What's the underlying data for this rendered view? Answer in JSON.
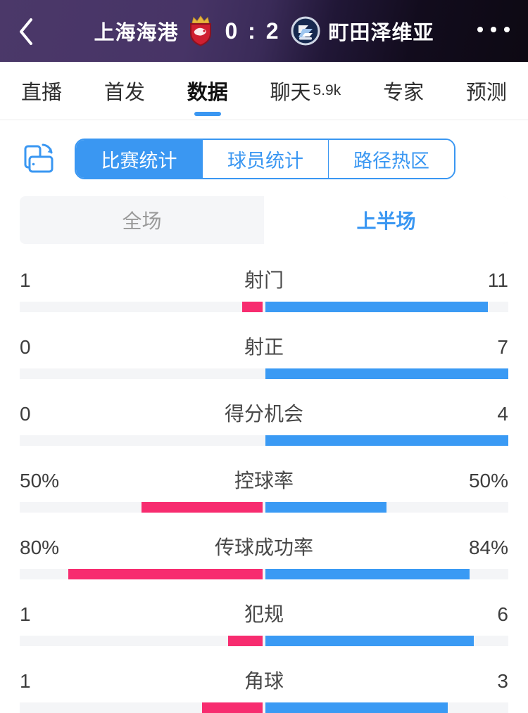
{
  "header": {
    "home_team": "上海海港",
    "away_team": "町田泽维亚",
    "score": "0 : 2"
  },
  "nav_tabs": {
    "items": [
      {
        "label": "直播",
        "count": "",
        "selected": false
      },
      {
        "label": "首发",
        "count": "",
        "selected": false
      },
      {
        "label": "数据",
        "count": "",
        "selected": true
      },
      {
        "label": "聊天",
        "count": "5.9k",
        "selected": false
      },
      {
        "label": "专家",
        "count": "",
        "selected": false
      },
      {
        "label": "预测",
        "count": "",
        "selected": false
      }
    ]
  },
  "stat_tabs": {
    "items": [
      {
        "label": "比赛统计",
        "selected": true
      },
      {
        "label": "球员统计",
        "selected": false
      },
      {
        "label": "路径热区",
        "selected": false
      }
    ]
  },
  "period_tabs": {
    "items": [
      {
        "label": "全场",
        "selected": false
      },
      {
        "label": "上半场",
        "selected": true
      }
    ]
  },
  "colors": {
    "home_bar": "#f72c6f",
    "away_bar": "#3a9af4",
    "accent_blue": "#3a97f2",
    "track": "#f4f5f7",
    "header_left": "#4b3869",
    "header_right": "#0d0913"
  },
  "chart_data": {
    "type": "bar",
    "orientation": "horizontal-paired",
    "title": "上半场 比赛统计",
    "categories": [
      "射门",
      "射正",
      "得分机会",
      "控球率",
      "传球成功率",
      "犯规",
      "角球"
    ],
    "percent_rows": [
      false,
      false,
      false,
      true,
      true,
      false,
      false
    ],
    "series": [
      {
        "name": "上海海港",
        "color": "#f72c6f",
        "values": [
          1,
          0,
          0,
          50,
          80,
          1,
          1
        ]
      },
      {
        "name": "町田泽维亚",
        "color": "#3a9af4",
        "values": [
          11,
          7,
          4,
          50,
          84,
          6,
          3
        ]
      }
    ],
    "scaling": "count rows: width = value/(left+right) of half track; percent rows: width = value/100 of half track"
  }
}
